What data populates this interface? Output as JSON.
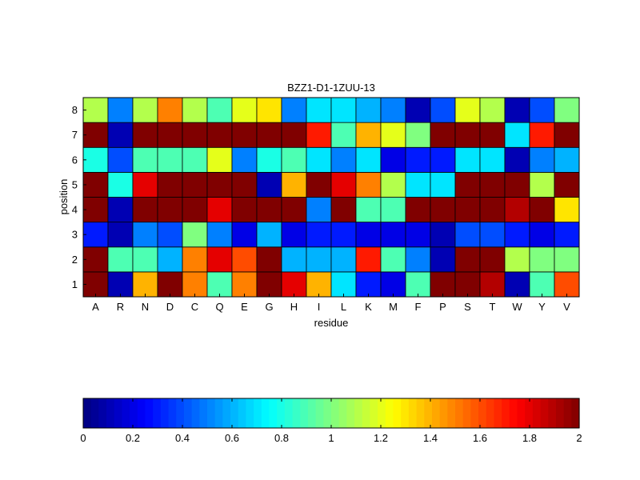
{
  "chart_data": {
    "type": "heatmap",
    "title": "BZZ1-D1-1ZUU-13",
    "xlabel": "residue",
    "ylabel": "position",
    "x_categories": [
      "A",
      "R",
      "N",
      "D",
      "C",
      "Q",
      "E",
      "G",
      "H",
      "I",
      "L",
      "K",
      "M",
      "F",
      "P",
      "S",
      "T",
      "W",
      "Y",
      "V"
    ],
    "y_categories": [
      "1",
      "2",
      "3",
      "4",
      "5",
      "6",
      "7",
      "8"
    ],
    "colormap": "jet",
    "clim": [
      0,
      2
    ],
    "colorbar": {
      "placement": "bottom",
      "ticks": [
        0,
        0.2,
        0.4,
        0.6,
        0.8,
        1,
        1.2,
        1.4,
        1.6,
        1.8,
        2
      ],
      "tick_labels": [
        "0",
        "0.2",
        "0.4",
        "0.6",
        "0.8",
        "1",
        "1.2",
        "1.4",
        "1.6",
        "1.8",
        "2"
      ]
    },
    "values": [
      [
        2.0,
        0.1,
        1.4,
        2.0,
        1.5,
        0.9,
        1.5,
        2.0,
        1.8,
        1.4,
        0.7,
        0.3,
        0.2,
        0.9,
        2.0,
        2.0,
        1.9,
        0.1,
        0.9,
        1.6
      ],
      [
        2.0,
        0.9,
        0.9,
        0.6,
        1.5,
        1.8,
        1.6,
        2.0,
        0.6,
        0.6,
        0.6,
        1.7,
        0.9,
        0.5,
        0.1,
        2.0,
        2.0,
        1.1,
        1.0,
        1.0
      ],
      [
        0.3,
        0.1,
        0.5,
        0.4,
        1.0,
        0.5,
        0.2,
        0.6,
        0.2,
        0.3,
        0.3,
        0.2,
        0.2,
        0.2,
        0.1,
        0.4,
        0.4,
        0.3,
        0.2,
        0.3
      ],
      [
        2.0,
        0.1,
        2.0,
        2.0,
        2.0,
        1.8,
        2.0,
        2.0,
        2.0,
        0.5,
        2.0,
        0.9,
        0.9,
        2.0,
        2.0,
        2.0,
        2.0,
        1.9,
        2.0,
        1.3
      ],
      [
        2.0,
        0.8,
        1.8,
        2.0,
        2.0,
        2.0,
        2.0,
        0.1,
        1.4,
        2.0,
        1.8,
        1.5,
        1.1,
        0.7,
        0.7,
        2.0,
        2.0,
        2.0,
        1.1,
        2.0
      ],
      [
        0.8,
        0.4,
        0.9,
        0.9,
        0.9,
        1.2,
        0.5,
        0.8,
        0.9,
        0.7,
        0.5,
        0.7,
        0.2,
        0.3,
        0.3,
        0.7,
        0.7,
        0.1,
        0.5,
        0.6
      ],
      [
        2.0,
        0.1,
        2.0,
        2.0,
        2.0,
        2.0,
        2.0,
        2.0,
        2.0,
        1.7,
        0.9,
        1.4,
        1.2,
        1.0,
        2.0,
        2.0,
        2.0,
        0.7,
        1.7,
        2.0
      ],
      [
        1.1,
        0.5,
        1.1,
        1.5,
        1.1,
        0.9,
        1.2,
        1.3,
        0.5,
        0.7,
        0.7,
        0.6,
        0.5,
        0.1,
        0.4,
        1.2,
        1.1,
        0.1,
        0.4,
        1.0
      ]
    ]
  }
}
